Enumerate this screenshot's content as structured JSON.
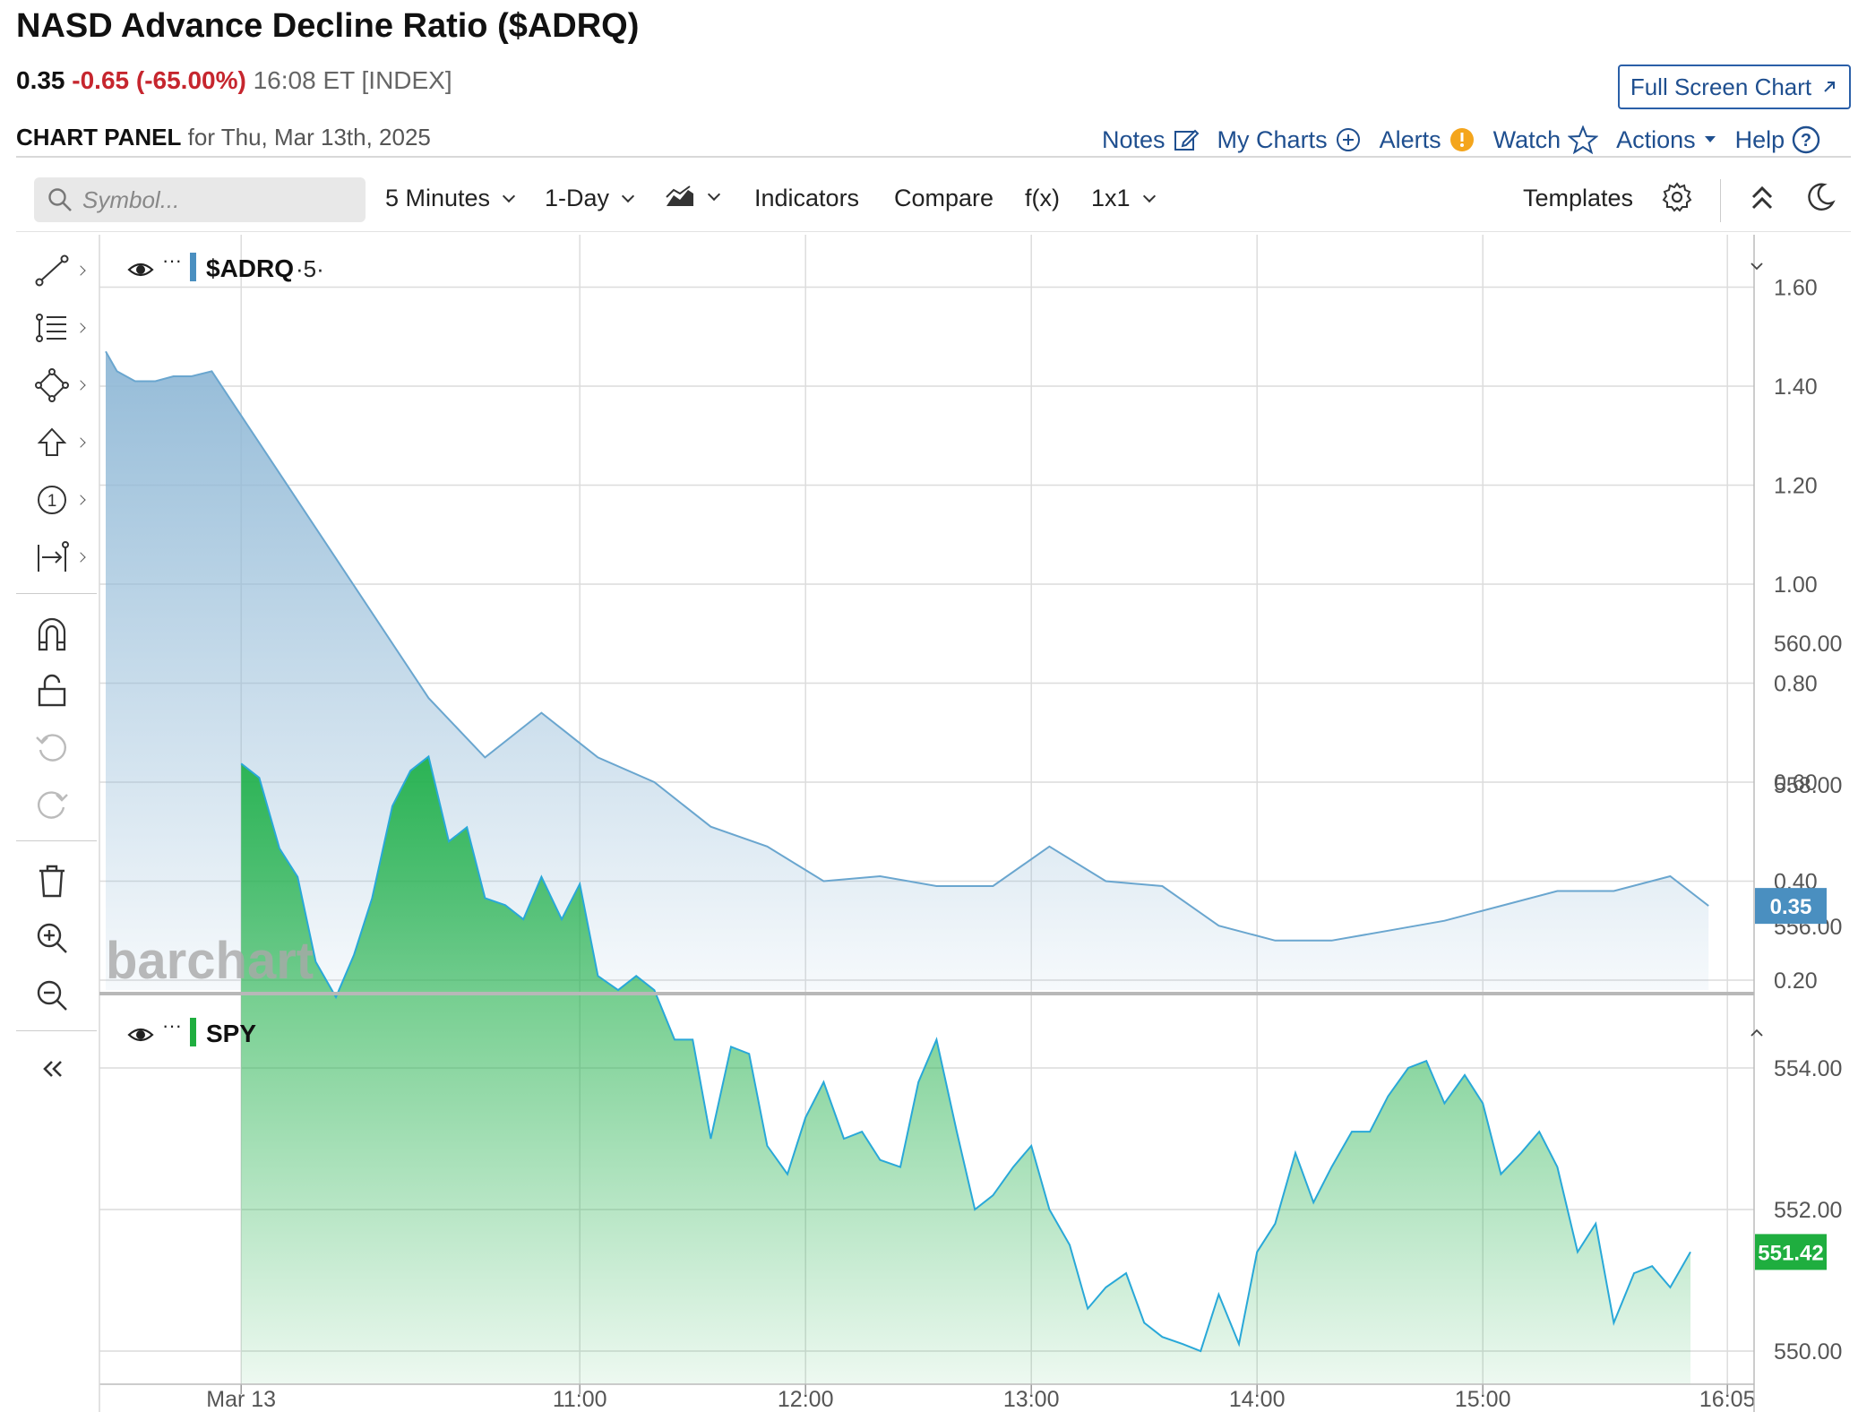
{
  "header": {
    "title": "NASD Advance Decline Ratio ($ADRQ)",
    "last": "0.35",
    "change": "-0.65 (-65.00%)",
    "meta": "16:08 ET [INDEX]",
    "fullscreen_label": "Full Screen Chart",
    "panel_label": "CHART PANEL",
    "panel_date": "for Thu, Mar 13th, 2025"
  },
  "links": {
    "notes": "Notes",
    "my_charts": "My Charts",
    "alerts": "Alerts",
    "watch": "Watch",
    "actions": "Actions",
    "help": "Help"
  },
  "toolbar": {
    "symbol_placeholder": "Symbol...",
    "interval": "5 Minutes",
    "range": "1-Day",
    "indicators": "Indicators",
    "compare": "Compare",
    "fx": "f(x)",
    "layout": "1x1",
    "templates": "Templates"
  },
  "icons": {
    "left_tools": [
      "line-tool-icon",
      "fib-tool-icon",
      "shape-tool-icon",
      "arrow-tool-icon",
      "count-tool-icon",
      "measure-tool-icon",
      "magnet-icon",
      "unlock-icon",
      "undo-icon",
      "redo-icon",
      "trash-icon",
      "zoom-in-icon",
      "zoom-out-icon",
      "collapse-icon"
    ]
  },
  "watermark": "barchart",
  "colors": {
    "adrq_line": "#6aa6cf",
    "adrq_fill_top": "#8fb8d6",
    "spy_line": "#29a8d8",
    "spy_fill_top": "#22b14c",
    "adrq_badge": "#4a8fc0",
    "spy_badge": "#1fae3f",
    "down": "#c6262e",
    "link": "#1f4f8f"
  },
  "chart_data": [
    {
      "type": "area",
      "series": [
        {
          "name": "$ADRQ",
          "label_suffix": "·5·"
        }
      ],
      "y_ticks": [
        "1.60",
        "1.40",
        "1.20",
        "1.00",
        "0.80",
        "0.60",
        "0.40",
        "0.20"
      ],
      "ylim": [
        0.2,
        1.6
      ],
      "last_badge": "0.35",
      "x_labels": [
        "Mar 13",
        "11:00",
        "12:00",
        "13:00",
        "14:00",
        "15:00",
        "16:05"
      ],
      "x_label_times": [
        9.5,
        11.0,
        12.0,
        13.0,
        14.0,
        15.0,
        16.0833
      ],
      "points": [
        [
          8.9,
          1.47
        ],
        [
          8.95,
          1.43
        ],
        [
          9.03,
          1.41
        ],
        [
          9.12,
          1.41
        ],
        [
          9.2,
          1.42
        ],
        [
          9.28,
          1.42
        ],
        [
          9.37,
          1.43
        ],
        [
          10.33,
          0.77
        ],
        [
          10.58,
          0.65
        ],
        [
          10.83,
          0.74
        ],
        [
          11.08,
          0.65
        ],
        [
          11.33,
          0.6
        ],
        [
          11.58,
          0.51
        ],
        [
          11.83,
          0.47
        ],
        [
          12.08,
          0.4
        ],
        [
          12.33,
          0.41
        ],
        [
          12.58,
          0.39
        ],
        [
          12.83,
          0.39
        ],
        [
          13.08,
          0.47
        ],
        [
          13.33,
          0.4
        ],
        [
          13.58,
          0.39
        ],
        [
          13.83,
          0.31
        ],
        [
          14.08,
          0.28
        ],
        [
          14.33,
          0.28
        ],
        [
          14.58,
          0.3
        ],
        [
          14.83,
          0.32
        ],
        [
          15.08,
          0.35
        ],
        [
          15.33,
          0.38
        ],
        [
          15.58,
          0.38
        ],
        [
          15.83,
          0.41
        ],
        [
          16.0,
          0.35
        ]
      ]
    },
    {
      "type": "area",
      "series": [
        {
          "name": "SPY"
        }
      ],
      "y_ticks": [
        "560.00",
        "558.00",
        "556.00",
        "554.00",
        "552.00",
        "550.00"
      ],
      "ylim": [
        550,
        560
      ],
      "last_badge": "551.42",
      "points": [
        [
          9.5,
          558.3
        ],
        [
          9.58,
          558.1
        ],
        [
          9.67,
          557.1
        ],
        [
          9.75,
          556.7
        ],
        [
          9.83,
          555.5
        ],
        [
          9.92,
          555.0
        ],
        [
          10.0,
          555.6
        ],
        [
          10.08,
          556.4
        ],
        [
          10.17,
          557.7
        ],
        [
          10.25,
          558.2
        ],
        [
          10.33,
          558.4
        ],
        [
          10.42,
          557.2
        ],
        [
          10.5,
          557.4
        ],
        [
          10.58,
          556.4
        ],
        [
          10.67,
          556.3
        ],
        [
          10.75,
          556.1
        ],
        [
          10.83,
          556.7
        ],
        [
          10.92,
          556.1
        ],
        [
          11.0,
          556.6
        ],
        [
          11.08,
          555.3
        ],
        [
          11.17,
          555.1
        ],
        [
          11.25,
          555.3
        ],
        [
          11.33,
          555.1
        ],
        [
          11.42,
          554.4
        ],
        [
          11.5,
          554.4
        ],
        [
          11.58,
          553.0
        ],
        [
          11.67,
          554.3
        ],
        [
          11.75,
          554.2
        ],
        [
          11.83,
          552.9
        ],
        [
          11.92,
          552.5
        ],
        [
          12.0,
          553.3
        ],
        [
          12.08,
          553.8
        ],
        [
          12.17,
          553.0
        ],
        [
          12.25,
          553.1
        ],
        [
          12.33,
          552.7
        ],
        [
          12.42,
          552.6
        ],
        [
          12.5,
          553.8
        ],
        [
          12.58,
          554.4
        ],
        [
          12.67,
          553.1
        ],
        [
          12.75,
          552.0
        ],
        [
          12.83,
          552.2
        ],
        [
          12.92,
          552.6
        ],
        [
          13.0,
          552.9
        ],
        [
          13.08,
          552.0
        ],
        [
          13.17,
          551.5
        ],
        [
          13.25,
          550.6
        ],
        [
          13.33,
          550.9
        ],
        [
          13.42,
          551.1
        ],
        [
          13.5,
          550.4
        ],
        [
          13.58,
          550.2
        ],
        [
          13.67,
          550.1
        ],
        [
          13.75,
          550.0
        ],
        [
          13.83,
          550.8
        ],
        [
          13.92,
          550.1
        ],
        [
          14.0,
          551.4
        ],
        [
          14.08,
          551.8
        ],
        [
          14.17,
          552.8
        ],
        [
          14.25,
          552.1
        ],
        [
          14.33,
          552.6
        ],
        [
          14.42,
          553.1
        ],
        [
          14.5,
          553.1
        ],
        [
          14.58,
          553.6
        ],
        [
          14.67,
          554.0
        ],
        [
          14.75,
          554.1
        ],
        [
          14.83,
          553.5
        ],
        [
          14.92,
          553.9
        ],
        [
          15.0,
          553.5
        ],
        [
          15.08,
          552.5
        ],
        [
          15.17,
          552.8
        ],
        [
          15.25,
          553.1
        ],
        [
          15.33,
          552.6
        ],
        [
          15.42,
          551.4
        ],
        [
          15.5,
          551.8
        ],
        [
          15.58,
          550.4
        ],
        [
          15.67,
          551.1
        ],
        [
          15.75,
          551.2
        ],
        [
          15.83,
          550.9
        ],
        [
          15.92,
          551.4
        ]
      ]
    }
  ]
}
